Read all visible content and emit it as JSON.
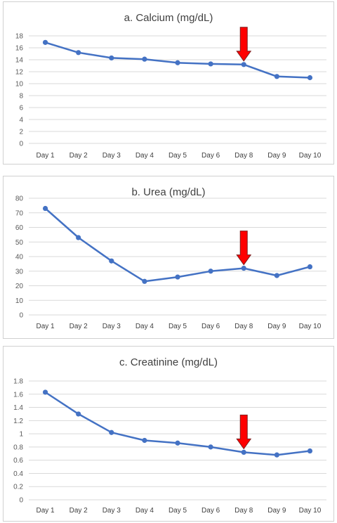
{
  "chart_data": [
    {
      "type": "line",
      "title": "a. Calcium (mg/dL)",
      "categories": [
        "Day 1",
        "Day 2",
        "Day 3",
        "Day 4",
        "Day 5",
        "Day 6",
        "Day 8",
        "Day 9",
        "Day 10"
      ],
      "series": [
        {
          "values": [
            16.9,
            15.2,
            14.3,
            14.1,
            13.5,
            13.3,
            13.2,
            11.2,
            11.0
          ]
        }
      ],
      "yticks": [
        "0",
        "2",
        "4",
        "6",
        "8",
        "10",
        "12",
        "14",
        "16",
        "18"
      ],
      "ylim": [
        0,
        18
      ],
      "grid": true,
      "line_color": "#4472c4",
      "annotation": {
        "type": "down-arrow",
        "category": "Day 8",
        "color": "#ff0000"
      }
    },
    {
      "type": "line",
      "title": "b. Urea (mg/dL)",
      "categories": [
        "Day 1",
        "Day 2",
        "Day 3",
        "Day 4",
        "Day 5",
        "Day 6",
        "Day 8",
        "Day 9",
        "Day 10"
      ],
      "series": [
        {
          "values": [
            73,
            53,
            37,
            23,
            26,
            30,
            32,
            27,
            33
          ]
        }
      ],
      "yticks": [
        "0",
        "10",
        "20",
        "30",
        "40",
        "50",
        "60",
        "70",
        "80"
      ],
      "ylim": [
        0,
        80
      ],
      "grid": true,
      "line_color": "#4472c4",
      "annotation": {
        "type": "down-arrow",
        "category": "Day 8",
        "color": "#ff0000"
      }
    },
    {
      "type": "line",
      "title": "c. Creatinine (mg/dL)",
      "categories": [
        "Day 1",
        "Day 2",
        "Day 3",
        "Day 4",
        "Day 5",
        "Day 6",
        "Day 8",
        "Day 9",
        "Day 10"
      ],
      "series": [
        {
          "values": [
            1.63,
            1.3,
            1.02,
            0.9,
            0.86,
            0.8,
            0.72,
            0.68,
            0.74
          ]
        }
      ],
      "yticks": [
        "0",
        "0.2",
        "0.4",
        "0.6",
        "0.8",
        "1",
        "1.2",
        "1.4",
        "1.6",
        "1.8"
      ],
      "ylim": [
        0,
        1.8
      ],
      "grid": true,
      "line_color": "#4472c4",
      "annotation": {
        "type": "down-arrow",
        "category": "Day 8",
        "color": "#ff0000"
      }
    }
  ]
}
